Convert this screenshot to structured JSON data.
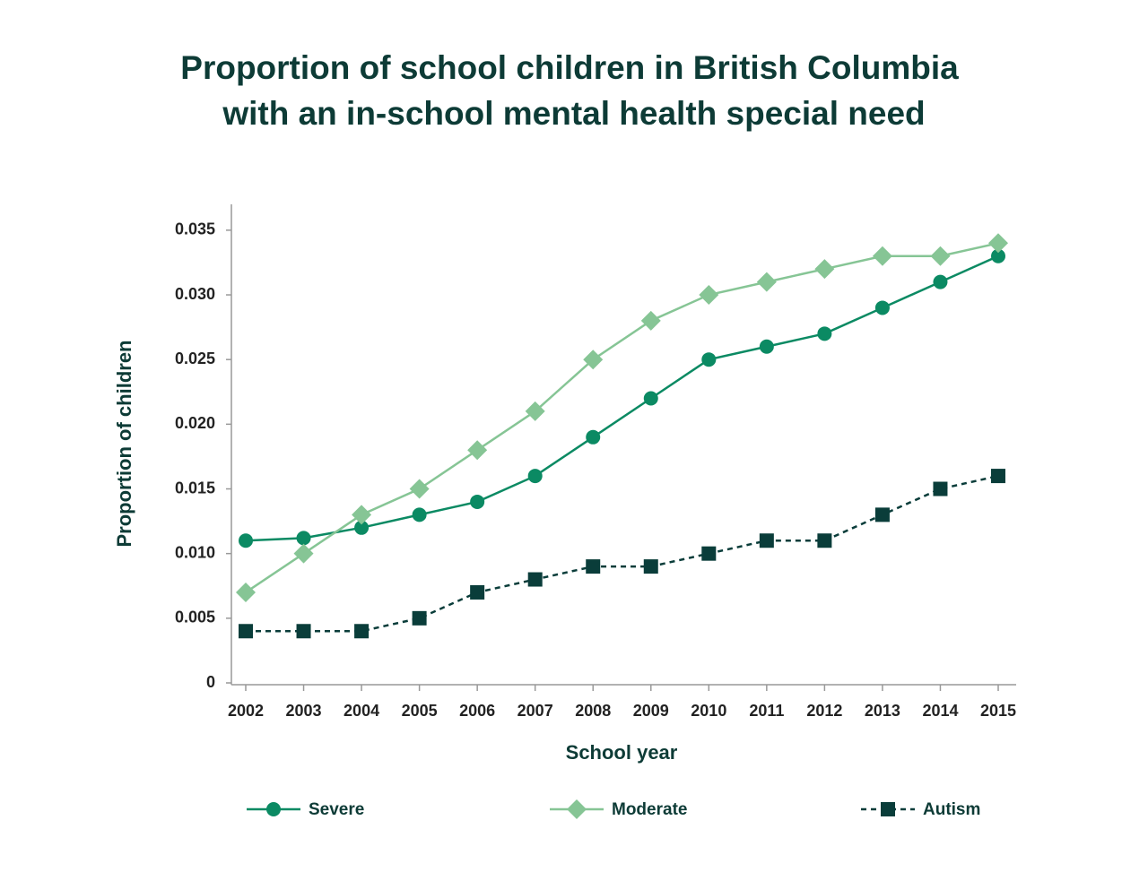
{
  "chart_data": {
    "type": "line",
    "title": "Proportion of school children in British Columbia",
    "subtitle": "with an in-school mental health special need",
    "x_label": "School year",
    "y_label": "Proportion of children",
    "categories": [
      "2002",
      "2003",
      "2004",
      "2005",
      "2006",
      "2007",
      "2008",
      "2009",
      "2010",
      "2011",
      "2012",
      "2013",
      "2014",
      "2015"
    ],
    "series": [
      {
        "name": "Severe",
        "color": "#0b8a63",
        "marker": "circle",
        "dashed": false,
        "values": [
          0.011,
          0.0112,
          0.012,
          0.013,
          0.014,
          0.016,
          0.019,
          0.022,
          0.025,
          0.026,
          0.027,
          0.029,
          0.031,
          0.033
        ]
      },
      {
        "name": "Moderate",
        "color": "#86c595",
        "marker": "diamond",
        "dashed": false,
        "values": [
          0.007,
          0.01,
          0.013,
          0.015,
          0.018,
          0.021,
          0.025,
          0.028,
          0.03,
          0.031,
          0.032,
          0.033,
          0.033,
          0.034
        ]
      },
      {
        "name": "Autism",
        "color": "#0a3d3a",
        "marker": "square",
        "dashed": true,
        "values": [
          0.004,
          0.004,
          0.004,
          0.005,
          0.007,
          0.008,
          0.009,
          0.009,
          0.01,
          0.011,
          0.011,
          0.013,
          0.015,
          0.016
        ]
      }
    ],
    "ylim": [
      0,
      0.037
    ],
    "yticks": [
      0,
      0.005,
      {
        "value": 0.01,
        "label": "0.010"
      },
      0.015,
      {
        "value": 0.02,
        "label": "0.020"
      },
      0.025,
      {
        "value": 0.03,
        "label": "0.030"
      },
      0.035
    ],
    "legend": "bottom"
  }
}
